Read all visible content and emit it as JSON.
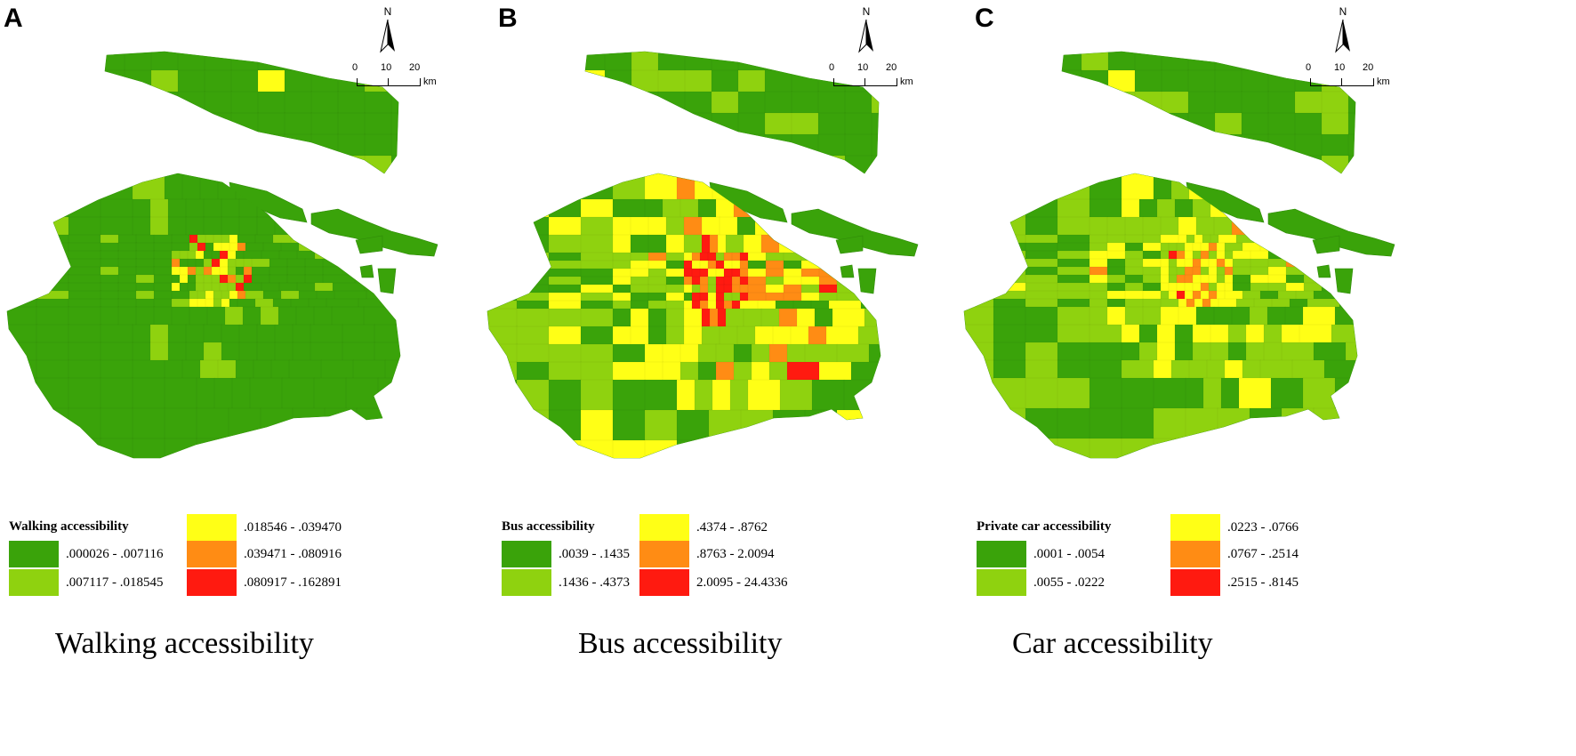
{
  "colors": {
    "class1": "#3aa30a",
    "class2": "#8fd20f",
    "class3": "#ffff16",
    "class4": "#ff8c14",
    "class5": "#ff1a10"
  },
  "scale": {
    "labels": [
      "0",
      "10",
      "20"
    ],
    "unit": "km"
  },
  "north_label": "N",
  "panels": [
    {
      "letter": "A",
      "legend_title": "Walking accessibility",
      "legend_items": [
        {
          "label": ".000026 - .007116"
        },
        {
          "label": ".007117 - .018545"
        },
        {
          "label": ".018546 - .039470"
        },
        {
          "label": ".039471 - .080916"
        },
        {
          "label": ".080917 - .162891"
        }
      ],
      "caption": "Walking accessibility"
    },
    {
      "letter": "B",
      "legend_title": "Bus accessibility",
      "legend_items": [
        {
          "label": ".0039 - .1435"
        },
        {
          "label": ".1436 - .4373"
        },
        {
          "label": ".4374 - .8762"
        },
        {
          "label": ".8763 - 2.0094"
        },
        {
          "label": "2.0095 - 24.4336"
        }
      ],
      "caption": "Bus accessibility"
    },
    {
      "letter": "C",
      "legend_title": "Private car accessibility",
      "legend_items": [
        {
          "label": ".0001 - .0054"
        },
        {
          "label": ".0055 - .0222"
        },
        {
          "label": ".0223 - .0766"
        },
        {
          "label": ".0767 - .2514"
        },
        {
          "label": ".2515 - .8145"
        }
      ],
      "caption": "Car accessibility"
    }
  ]
}
